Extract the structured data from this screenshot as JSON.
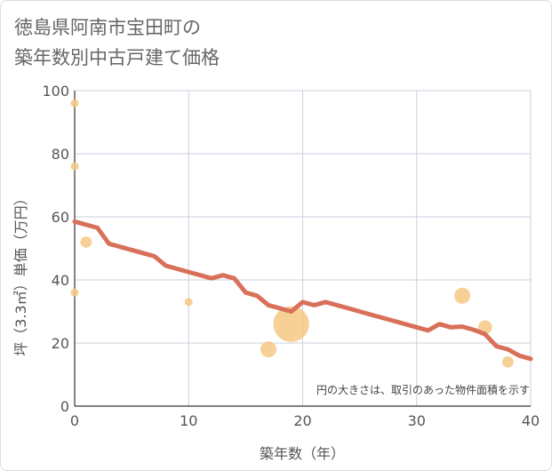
{
  "chart_data": {
    "type": "scatter",
    "title_lines": [
      "徳島県阿南市宝田町の",
      "築年数別中古戸建て価格"
    ],
    "xlabel": "築年数（年）",
    "ylabel": "坪（3.3㎡）単価（万円）",
    "xlim": [
      0,
      40
    ],
    "ylim": [
      0,
      100
    ],
    "x_ticks": [
      0,
      10,
      20,
      30,
      40
    ],
    "y_ticks": [
      0,
      20,
      40,
      60,
      80,
      100
    ],
    "grid": true,
    "note": "円の大きさは、取引のあった物件面積を示す",
    "point_color": "#f5c882",
    "line_color": "#d9705a",
    "points": [
      {
        "x": 0,
        "y": 96,
        "size": 1
      },
      {
        "x": 0,
        "y": 76,
        "size": 1
      },
      {
        "x": 0,
        "y": 36,
        "size": 1
      },
      {
        "x": 1,
        "y": 52,
        "size": 2
      },
      {
        "x": 10,
        "y": 33,
        "size": 1
      },
      {
        "x": 17,
        "y": 18,
        "size": 4
      },
      {
        "x": 19,
        "y": 26,
        "size": 20
      },
      {
        "x": 34,
        "y": 35,
        "size": 4
      },
      {
        "x": 36,
        "y": 25,
        "size": 3
      },
      {
        "x": 38,
        "y": 14,
        "size": 2
      }
    ],
    "trend": {
      "name": "trend",
      "x": [
        0,
        2,
        3,
        5,
        7,
        8,
        10,
        12,
        13,
        14,
        15,
        16,
        17,
        18,
        19,
        20,
        21,
        22,
        24,
        26,
        28,
        30,
        31,
        32,
        33,
        34,
        35,
        36,
        37,
        38,
        39,
        40
      ],
      "y": [
        58.5,
        56.5,
        51.5,
        49.5,
        47.5,
        44.5,
        42.5,
        40.5,
        41.5,
        40.5,
        36,
        35,
        32,
        31,
        30,
        33,
        32,
        33,
        31,
        29,
        27,
        25,
        24,
        26,
        25,
        25.2,
        24.2,
        22.8,
        19,
        18,
        16,
        15
      ]
    }
  }
}
